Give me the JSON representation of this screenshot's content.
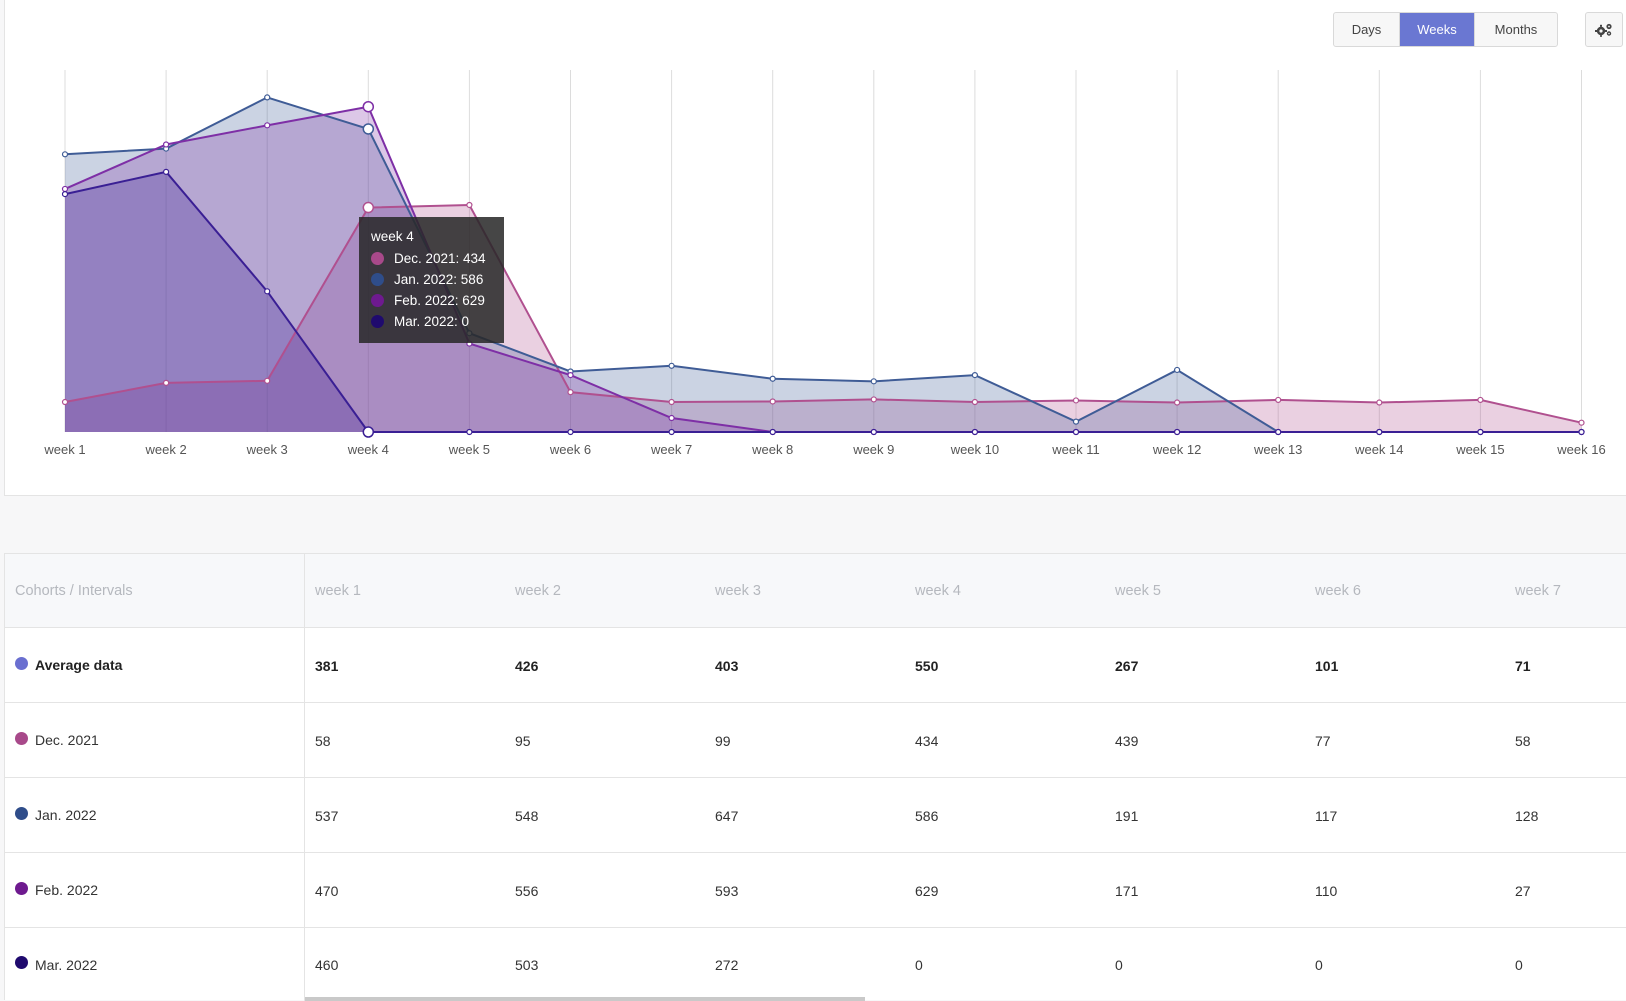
{
  "period_toggle": {
    "buttons": [
      {
        "label": "Days",
        "active": false
      },
      {
        "label": "Weeks",
        "active": true
      },
      {
        "label": "Months",
        "active": false
      }
    ],
    "settings_icon": "gear-icon"
  },
  "colors": {
    "avg": "#6a6fd0",
    "dec": "#a8498a",
    "jan": "#2f4d8a",
    "feb": "#6e1a8f",
    "mar": "#1f0a6e"
  },
  "chart_data": {
    "type": "area",
    "x": [
      "week 1",
      "week 2",
      "week 3",
      "week 4",
      "week 5",
      "week 6",
      "week 7",
      "week 8",
      "week 9",
      "week 10",
      "week 11",
      "week 12",
      "week 13",
      "week 14",
      "week 15",
      "week 16"
    ],
    "ylim": [
      0,
      700
    ],
    "grid": "vertical",
    "series": [
      {
        "name": "Dec. 2021",
        "color": "#b0508f",
        "values": [
          58,
          95,
          99,
          434,
          439,
          77,
          58,
          59,
          63,
          58,
          61,
          57,
          62,
          57,
          62,
          18
        ]
      },
      {
        "name": "Jan. 2022",
        "color": "#3f5c96",
        "values": [
          537,
          548,
          647,
          586,
          191,
          117,
          128,
          103,
          98,
          110,
          20,
          120,
          0,
          0,
          0,
          0
        ]
      },
      {
        "name": "Feb. 2022",
        "color": "#7e2fa6",
        "values": [
          470,
          556,
          593,
          629,
          171,
          110,
          27,
          0,
          0,
          0,
          0,
          0,
          0,
          0,
          0,
          0
        ]
      },
      {
        "name": "Mar. 2022",
        "color": "#3a1f94",
        "values": [
          460,
          503,
          272,
          0,
          0,
          0,
          0,
          0,
          0,
          0,
          0,
          0,
          0,
          0,
          0,
          0
        ]
      }
    ],
    "tooltip": {
      "title": "week 4",
      "entries": [
        {
          "text": "Dec. 2021: 434",
          "color": "#a8498a"
        },
        {
          "text": "Jan. 2022: 586",
          "color": "#2f4d8a"
        },
        {
          "text": "Feb. 2022: 629",
          "color": "#6e1a8f"
        },
        {
          "text": "Mar. 2022: 0",
          "color": "#1f0a6e"
        }
      ]
    }
  },
  "table": {
    "header_label": "Cohorts / Intervals",
    "columns": [
      "week 1",
      "week 2",
      "week 3",
      "week 4",
      "week 5",
      "week 6",
      "week 7"
    ],
    "rows": [
      {
        "label": "Average data",
        "color": "#6a6fd0",
        "bold": true,
        "values": [
          "381",
          "426",
          "403",
          "550",
          "267",
          "101",
          "71"
        ]
      },
      {
        "label": "Dec. 2021",
        "color": "#a8498a",
        "bold": false,
        "values": [
          "58",
          "95",
          "99",
          "434",
          "439",
          "77",
          "58"
        ]
      },
      {
        "label": "Jan. 2022",
        "color": "#2f4d8a",
        "bold": false,
        "values": [
          "537",
          "548",
          "647",
          "586",
          "191",
          "117",
          "128"
        ]
      },
      {
        "label": "Feb. 2022",
        "color": "#6e1a8f",
        "bold": false,
        "values": [
          "470",
          "556",
          "593",
          "629",
          "171",
          "110",
          "27"
        ]
      },
      {
        "label": "Mar. 2022",
        "color": "#1f0a6e",
        "bold": false,
        "values": [
          "460",
          "503",
          "272",
          "0",
          "0",
          "0",
          "0"
        ]
      }
    ]
  }
}
